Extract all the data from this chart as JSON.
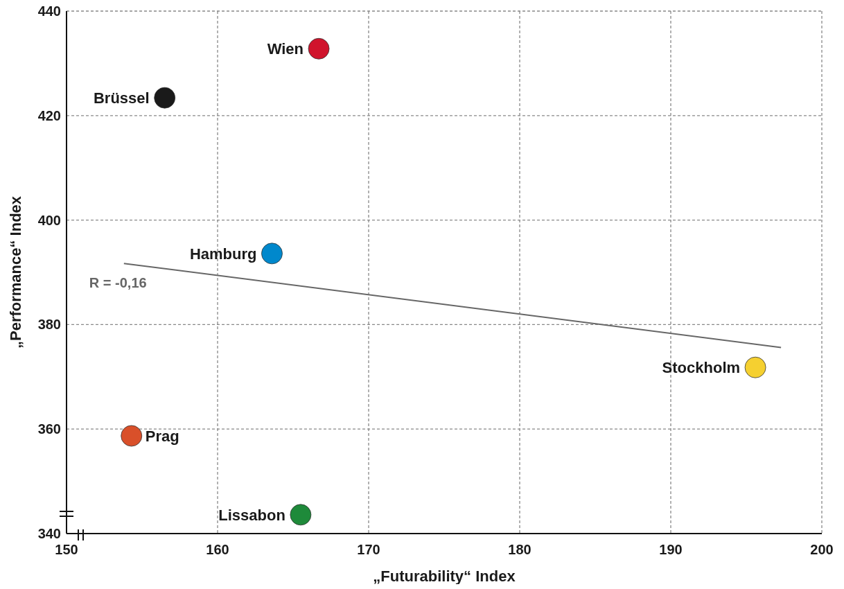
{
  "chart_data": {
    "type": "scatter",
    "xlabel": "„Futurability“ Index",
    "ylabel": "„Performance“ Index",
    "xlim": [
      150,
      200
    ],
    "ylim": [
      340,
      440
    ],
    "xticks": [
      150,
      160,
      170,
      180,
      190,
      200
    ],
    "yticks": [
      340,
      360,
      380,
      400,
      420,
      440
    ],
    "grid": true,
    "marker": "circle",
    "series": [
      {
        "name": "Wien",
        "color": "#d0142c",
        "x": [
          166.7
        ],
        "values": [
          432.8
        ]
      },
      {
        "name": "Brüssel",
        "color": "#1a1a1a",
        "x": [
          156.5
        ],
        "values": [
          423.4
        ]
      },
      {
        "name": "Hamburg",
        "color": "#0088cc",
        "x": [
          163.6
        ],
        "values": [
          393.6
        ]
      },
      {
        "name": "Stockholm",
        "color": "#f5d030",
        "x": [
          195.6
        ],
        "values": [
          371.8
        ]
      },
      {
        "name": "Prag",
        "color": "#d9502a",
        "x": [
          154.3
        ],
        "values": [
          358.7
        ]
      },
      {
        "name": "Lissabon",
        "color": "#1e8a3a",
        "x": [
          165.5
        ],
        "values": [
          343.6
        ]
      },
      {
        "type": "line",
        "color": "#666666",
        "marker": "none",
        "x": [
          153.8,
          197.3
        ],
        "values": [
          391.7,
          375.6
        ]
      }
    ],
    "annotations": [
      "R = -0,16"
    ]
  }
}
